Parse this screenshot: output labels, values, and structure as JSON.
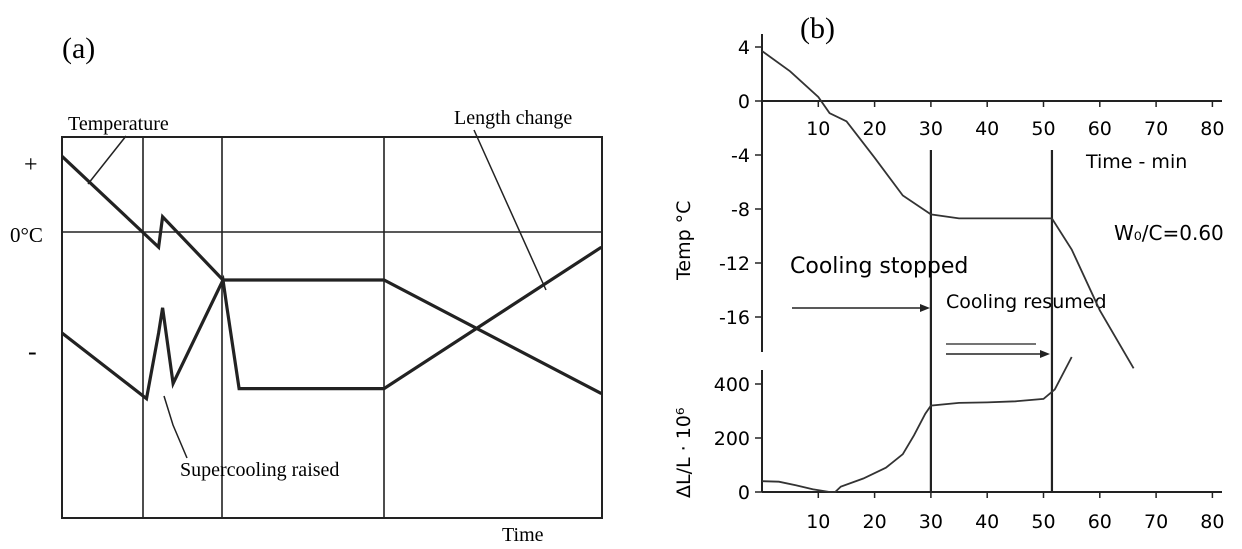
{
  "chart_data": [
    {
      "panel_label": "(a)",
      "type": "line",
      "xlabel": "Time",
      "y_tick_labels": [
        "+",
        "0°C",
        "-"
      ],
      "annotations": [
        "Temperature",
        "Length change",
        "Supercooling raised"
      ],
      "series": [
        {
          "name": "Temperature",
          "x": [
            0,
            1,
            1.2,
            1.25,
            2,
            4,
            6.7
          ],
          "y": [
            1.5,
            0,
            -0.3,
            0.3,
            -0.95,
            -0.95,
            -3.2
          ]
        },
        {
          "name": "Length change",
          "x": [
            0,
            1.05,
            1.2,
            1.25,
            1.38,
            2,
            2.05,
            2.2,
            4,
            6.7
          ],
          "y": [
            -2,
            -3.3,
            -2,
            -1.5,
            -3,
            -0.95,
            -1.5,
            -3.1,
            -3.1,
            -0.3
          ]
        }
      ]
    },
    {
      "panel_label": "(b)",
      "type": "line",
      "xlabel": "Time - min",
      "ylabel_top": "Temp °C",
      "ylabel_bottom": "ΔL/L · 10⁶",
      "annotation_ratio": "W₀/C=0.60",
      "label_cooling_stopped": "Cooling stopped",
      "label_cooling_resumed": "Cooling resumed",
      "x_ticks": [
        10,
        20,
        30,
        40,
        50,
        60,
        70,
        80
      ],
      "temp_ticks": [
        4,
        0,
        -4,
        -8,
        -12,
        -16
      ],
      "dl_ticks": [
        400,
        200,
        0
      ],
      "events_x": [
        30,
        51.5
      ],
      "temperature": {
        "x": [
          0,
          5,
          10,
          12,
          15,
          20,
          25,
          30,
          35,
          40,
          45,
          51.5,
          55,
          60,
          66
        ],
        "y": [
          3.7,
          2.2,
          0.3,
          -0.9,
          -1.5,
          -4.2,
          -7,
          -8.4,
          -8.7,
          -8.7,
          -8.7,
          -8.7,
          -11,
          -15.5,
          -19.8
        ]
      },
      "length_change": {
        "x": [
          0,
          3,
          6,
          9,
          12,
          13,
          14,
          18,
          22,
          25,
          27,
          29,
          30,
          35,
          40,
          45,
          50,
          52,
          55
        ],
        "y": [
          40,
          38,
          25,
          10,
          0,
          0,
          20,
          50,
          90,
          140,
          210,
          290,
          320,
          330,
          332,
          336,
          345,
          380,
          500
        ]
      }
    }
  ]
}
